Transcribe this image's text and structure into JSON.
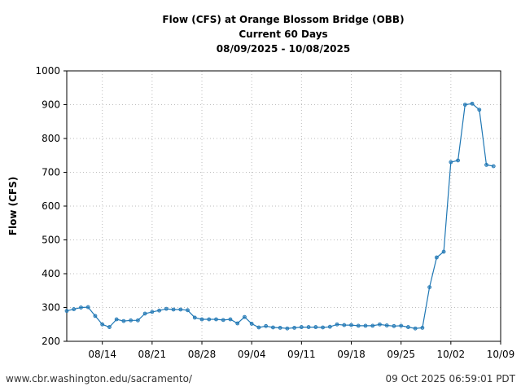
{
  "chart_data": {
    "type": "line",
    "title": [
      "Flow (CFS) at Orange Blossom Bridge (OBB)",
      "Current 60 Days",
      "08/09/2025 - 10/08/2025"
    ],
    "xlabel": "",
    "ylabel": "Flow (CFS)",
    "ylim": [
      200,
      1000
    ],
    "yticks": [
      200,
      300,
      400,
      500,
      600,
      700,
      800,
      900,
      1000
    ],
    "x_start": "08/09",
    "xlim_days": [
      0,
      61
    ],
    "xticks": [
      {
        "label": "08/14",
        "day": 5
      },
      {
        "label": "08/21",
        "day": 12
      },
      {
        "label": "08/28",
        "day": 19
      },
      {
        "label": "09/04",
        "day": 26
      },
      {
        "label": "09/11",
        "day": 33
      },
      {
        "label": "09/18",
        "day": 40
      },
      {
        "label": "09/25",
        "day": 47
      },
      {
        "label": "10/02",
        "day": 54
      },
      {
        "label": "10/09",
        "day": 61
      }
    ],
    "grid": true,
    "series": [
      {
        "name": "Flow (CFS)",
        "color": "#1f77b4",
        "values": [
          290,
          295,
          300,
          301,
          275,
          250,
          242,
          265,
          260,
          262,
          262,
          282,
          287,
          291,
          296,
          294,
          294,
          292,
          270,
          265,
          265,
          265,
          263,
          265,
          253,
          272,
          252,
          241,
          245,
          241,
          240,
          238,
          240,
          242,
          242,
          242,
          241,
          243,
          250,
          248,
          248,
          246,
          246,
          246,
          250,
          247,
          245,
          246,
          242,
          238,
          240,
          360,
          448,
          465,
          730,
          735,
          900,
          903,
          885,
          722,
          718
        ]
      }
    ]
  },
  "footer": {
    "url": "www.cbr.washington.edu/sacramento/",
    "timestamp": "09 Oct 2025 06:59:01 PDT"
  }
}
